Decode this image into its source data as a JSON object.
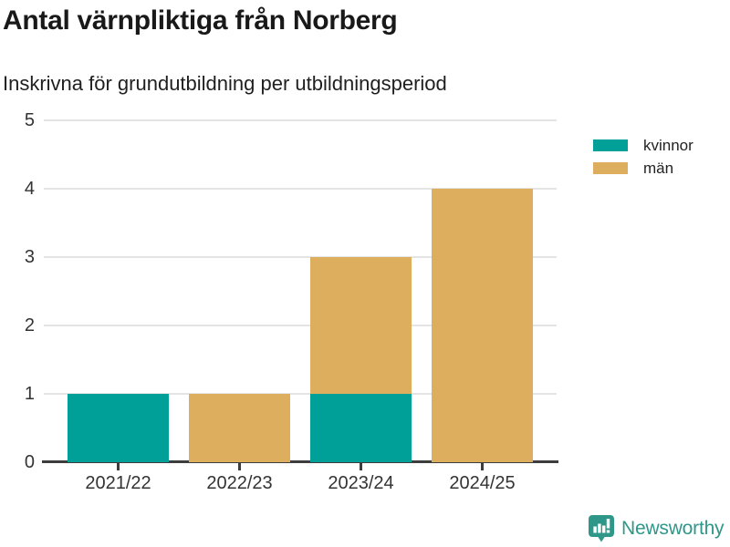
{
  "header": {
    "title": "Antal värnpliktiga från Norberg",
    "subtitle": "Inskrivna för grundutbildning per utbildningsperiod"
  },
  "chart_data": {
    "type": "bar",
    "stacked": true,
    "title": "Antal värnpliktiga från Norberg",
    "subtitle": "Inskrivna för grundutbildning per utbildningsperiod",
    "categories": [
      "2021/22",
      "2022/23",
      "2023/24",
      "2024/25"
    ],
    "series": [
      {
        "name": "kvinnor",
        "color": "#00a099",
        "values": [
          1,
          0,
          1,
          0
        ]
      },
      {
        "name": "män",
        "color": "#dcae5e",
        "values": [
          0,
          1,
          2,
          4
        ]
      }
    ],
    "totals": [
      1,
      1,
      3,
      4
    ],
    "xlabel": "",
    "ylabel": "",
    "ylim": [
      0,
      5
    ],
    "yticks": [
      0,
      1,
      2,
      3,
      4,
      5
    ],
    "grid": true,
    "gridline_color": "#e4e4e4",
    "axis_color": "#3d3d3d",
    "legend_position": "top-right"
  },
  "legend": {
    "items": [
      {
        "label": "kvinnor",
        "color": "#00a099"
      },
      {
        "label": "män",
        "color": "#dcae5e"
      }
    ]
  },
  "footer": {
    "brand": "Newsworthy",
    "brand_color": "#2f9789",
    "logo_icon": "newsworthy-bar-chart-speech-bubble-icon"
  }
}
